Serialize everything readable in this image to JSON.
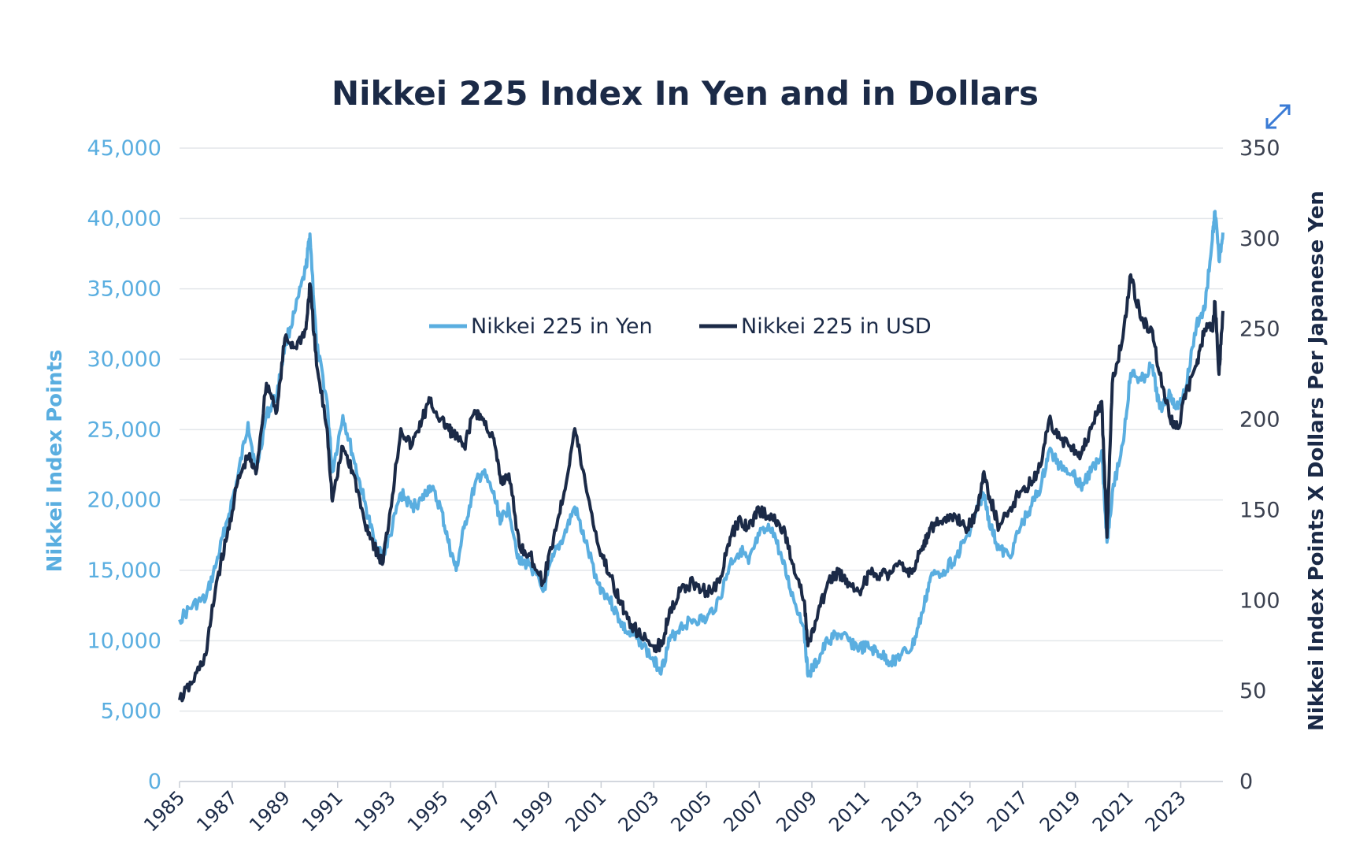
{
  "colors": {
    "yen": "#5aaee0",
    "usd": "#1b2a47",
    "grid": "#e3e6ea",
    "expand_icon": "#3a7bd5"
  },
  "expand_icon": "expand-diagonal-arrows-icon",
  "chart_data": {
    "type": "line",
    "title": "Nikkei 225 Index In Yen and in Dollars",
    "xlabel": "",
    "ylabel_left": "Nikkei Index Points",
    "ylabel_right": "Nikkei Index Points X Dollars Per Japanese Yen",
    "xlim": [
      1985,
      2024.6
    ],
    "ylim_left": [
      0,
      45000
    ],
    "ylim_right": [
      0,
      350
    ],
    "y_ticks_left": [
      "0",
      "5,000",
      "10,000",
      "15,000",
      "20,000",
      "25,000",
      "30,000",
      "35,000",
      "40,000",
      "45,000"
    ],
    "y_ticks_right": [
      "0",
      "50",
      "100",
      "150",
      "200",
      "250",
      "300",
      "350"
    ],
    "x_ticks": [
      "1985",
      "1987",
      "1989",
      "1991",
      "1993",
      "1995",
      "1997",
      "1999",
      "2001",
      "2003",
      "2005",
      "2007",
      "2009",
      "2011",
      "2013",
      "2015",
      "2017",
      "2019",
      "2021",
      "2023"
    ],
    "grid": true,
    "legend": "top-center",
    "series": [
      {
        "name": "Nikkei 225 in Yen",
        "axis": "left",
        "x": [
          1985.0,
          1985.5,
          1986.0,
          1986.4,
          1986.8,
          1987.2,
          1987.6,
          1987.9,
          1988.3,
          1988.7,
          1989.0,
          1989.4,
          1989.8,
          1989.95,
          1990.2,
          1990.6,
          1990.8,
          1991.2,
          1991.6,
          1992.0,
          1992.4,
          1992.7,
          1993.0,
          1993.4,
          1993.8,
          1994.2,
          1994.5,
          1994.9,
          1995.2,
          1995.5,
          1995.8,
          1996.2,
          1996.5,
          1996.9,
          1997.2,
          1997.5,
          1997.9,
          1998.3,
          1998.8,
          1999.2,
          1999.6,
          2000.0,
          2000.4,
          2000.9,
          2001.3,
          2001.7,
          2002.0,
          2002.5,
          2003.0,
          2003.3,
          2003.6,
          2004.0,
          2004.5,
          2005.0,
          2005.5,
          2005.9,
          2006.3,
          2006.6,
          2007.0,
          2007.5,
          2007.9,
          2008.3,
          2008.7,
          2008.85,
          2009.2,
          2009.6,
          2010.0,
          2010.4,
          2010.8,
          2011.2,
          2011.6,
          2012.0,
          2012.4,
          2012.8,
          2013.2,
          2013.5,
          2014.0,
          2014.5,
          2014.9,
          2015.3,
          2015.5,
          2015.8,
          2016.1,
          2016.5,
          2016.9,
          2017.3,
          2017.7,
          2018.0,
          2018.4,
          2018.9,
          2019.2,
          2019.6,
          2020.0,
          2020.2,
          2020.4,
          2020.8,
          2021.1,
          2021.5,
          2021.9,
          2022.2,
          2022.6,
          2022.9,
          2023.2,
          2023.6,
          2023.9,
          2024.2,
          2024.3,
          2024.45,
          2024.6
        ],
        "values": [
          11500,
          12500,
          13000,
          15500,
          18500,
          21500,
          25500,
          22000,
          26000,
          27500,
          31000,
          33500,
          36500,
          38900,
          31000,
          27000,
          22000,
          26000,
          23000,
          20000,
          17000,
          16000,
          17500,
          20500,
          19500,
          20000,
          21000,
          19500,
          17000,
          15000,
          18000,
          21000,
          22000,
          20500,
          18500,
          19500,
          15500,
          15500,
          13500,
          16000,
          17500,
          19500,
          17000,
          14000,
          13000,
          11500,
          10500,
          10000,
          8500,
          8000,
          10000,
          11000,
          11500,
          11500,
          13000,
          15500,
          16500,
          15500,
          17500,
          18000,
          15500,
          13000,
          11000,
          7500,
          8500,
          10000,
          10500,
          10000,
          9500,
          9500,
          9000,
          8500,
          9000,
          9500,
          12000,
          14500,
          15000,
          16000,
          17500,
          19500,
          20500,
          18000,
          16500,
          16000,
          18000,
          19500,
          21000,
          23500,
          22500,
          22000,
          21000,
          22000,
          23500,
          17000,
          20500,
          24000,
          29000,
          28500,
          29500,
          26500,
          27500,
          26500,
          28000,
          32500,
          33500,
          38500,
          40500,
          37000,
          39000
        ]
      },
      {
        "name": "Nikkei 225 in USD",
        "axis": "right",
        "x": [
          1985.0,
          1985.5,
          1986.0,
          1986.4,
          1986.8,
          1987.2,
          1987.6,
          1987.9,
          1988.3,
          1988.7,
          1989.0,
          1989.4,
          1989.8,
          1989.95,
          1990.2,
          1990.6,
          1990.8,
          1991.2,
          1991.6,
          1992.0,
          1992.4,
          1992.7,
          1993.0,
          1993.4,
          1993.8,
          1994.2,
          1994.5,
          1994.9,
          1995.2,
          1995.5,
          1995.8,
          1996.2,
          1996.5,
          1996.9,
          1997.2,
          1997.5,
          1997.9,
          1998.3,
          1998.8,
          1999.2,
          1999.6,
          2000.0,
          2000.4,
          2000.9,
          2001.3,
          2001.7,
          2002.0,
          2002.5,
          2003.0,
          2003.3,
          2003.6,
          2004.0,
          2004.5,
          2005.0,
          2005.5,
          2005.9,
          2006.3,
          2006.6,
          2007.0,
          2007.5,
          2007.9,
          2008.3,
          2008.7,
          2008.85,
          2009.2,
          2009.6,
          2010.0,
          2010.4,
          2010.8,
          2011.2,
          2011.6,
          2012.0,
          2012.4,
          2012.8,
          2013.2,
          2013.5,
          2014.0,
          2014.5,
          2014.9,
          2015.3,
          2015.5,
          2015.8,
          2016.1,
          2016.5,
          2016.9,
          2017.3,
          2017.7,
          2018.0,
          2018.4,
          2018.9,
          2019.2,
          2019.6,
          2020.0,
          2020.2,
          2020.4,
          2020.8,
          2021.1,
          2021.5,
          2021.9,
          2022.2,
          2022.6,
          2022.9,
          2023.2,
          2023.6,
          2023.9,
          2024.2,
          2024.3,
          2024.45,
          2024.6
        ],
        "values": [
          45,
          55,
          70,
          110,
          135,
          165,
          180,
          170,
          220,
          205,
          245,
          240,
          250,
          275,
          230,
          195,
          155,
          185,
          170,
          145,
          130,
          120,
          150,
          195,
          185,
          200,
          210,
          200,
          195,
          190,
          185,
          205,
          200,
          190,
          165,
          170,
          130,
          125,
          110,
          135,
          160,
          195,
          165,
          130,
          115,
          100,
          90,
          80,
          75,
          75,
          95,
          105,
          110,
          105,
          110,
          135,
          145,
          140,
          150,
          145,
          140,
          120,
          100,
          75,
          90,
          110,
          115,
          110,
          105,
          115,
          115,
          115,
          120,
          115,
          130,
          140,
          145,
          145,
          140,
          150,
          170,
          155,
          140,
          150,
          160,
          165,
          175,
          200,
          190,
          185,
          180,
          195,
          210,
          135,
          220,
          245,
          280,
          255,
          250,
          225,
          200,
          195,
          215,
          230,
          250,
          250,
          265,
          225,
          260
        ]
      }
    ]
  }
}
